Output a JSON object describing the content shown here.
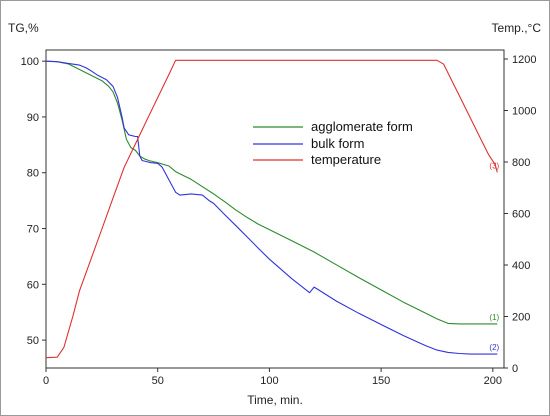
{
  "chart_data": {
    "type": "line",
    "y_left_label": "TG,%",
    "y_right_label": "Temp.,°C",
    "xlabel": "Time, min.",
    "xlim": [
      0,
      205
    ],
    "ylim_left": [
      45,
      102
    ],
    "ylim_right": [
      0,
      1235
    ],
    "x_ticks": [
      0,
      50,
      100,
      150,
      200
    ],
    "y_left_ticks": [
      50,
      60,
      70,
      80,
      90,
      100
    ],
    "y_right_ticks": [
      0,
      200,
      400,
      600,
      800,
      1000,
      1200
    ],
    "grid": false,
    "legend_position": "center-top",
    "series": [
      {
        "name": "agglomerate form",
        "axis": "left",
        "color": "#2e8b2e",
        "end_label": "(1)",
        "points": [
          [
            0,
            100
          ],
          [
            5,
            99.9
          ],
          [
            10,
            99.5
          ],
          [
            15,
            98.5
          ],
          [
            20,
            97.5
          ],
          [
            25,
            96.5
          ],
          [
            28,
            95.5
          ],
          [
            30,
            94.5
          ],
          [
            32,
            92.5
          ],
          [
            34,
            89.5
          ],
          [
            36,
            86
          ],
          [
            38,
            84.5
          ],
          [
            40,
            84
          ],
          [
            42,
            83
          ],
          [
            44,
            82.5
          ],
          [
            46,
            82.2
          ],
          [
            48,
            82
          ],
          [
            50,
            81.8
          ],
          [
            55,
            81.2
          ],
          [
            58,
            80.2
          ],
          [
            60,
            79.8
          ],
          [
            65,
            78.8
          ],
          [
            70,
            77.5
          ],
          [
            75,
            76.2
          ],
          [
            80,
            74.8
          ],
          [
            85,
            73.3
          ],
          [
            90,
            72
          ],
          [
            95,
            70.8
          ],
          [
            100,
            69.8
          ],
          [
            110,
            67.8
          ],
          [
            120,
            65.8
          ],
          [
            130,
            63.5
          ],
          [
            140,
            61.2
          ],
          [
            150,
            59
          ],
          [
            160,
            56.8
          ],
          [
            170,
            54.8
          ],
          [
            175,
            53.8
          ],
          [
            180,
            53
          ],
          [
            185,
            52.9
          ],
          [
            190,
            52.9
          ],
          [
            195,
            52.9
          ],
          [
            200,
            52.9
          ],
          [
            202,
            52.9
          ]
        ]
      },
      {
        "name": "bulk form",
        "axis": "left",
        "color": "#3333dd",
        "end_label": "(2)",
        "points": [
          [
            0,
            100
          ],
          [
            5,
            99.9
          ],
          [
            10,
            99.6
          ],
          [
            15,
            99.3
          ],
          [
            18,
            98.8
          ],
          [
            20,
            98.3
          ],
          [
            23,
            97.5
          ],
          [
            27,
            96.7
          ],
          [
            30,
            95.5
          ],
          [
            32,
            93.5
          ],
          [
            34,
            90
          ],
          [
            35,
            88
          ],
          [
            37,
            86.8
          ],
          [
            40,
            86.5
          ],
          [
            41,
            86.5
          ],
          [
            42,
            83
          ],
          [
            43,
            82.2
          ],
          [
            45,
            82
          ],
          [
            47,
            81.8
          ],
          [
            50,
            81.7
          ],
          [
            52,
            81
          ],
          [
            54,
            79.5
          ],
          [
            56,
            78
          ],
          [
            58,
            76.5
          ],
          [
            60,
            76
          ],
          [
            65,
            76.2
          ],
          [
            70,
            76
          ],
          [
            73,
            75
          ],
          [
            75,
            74.5
          ],
          [
            80,
            72.5
          ],
          [
            85,
            70.5
          ],
          [
            90,
            68.5
          ],
          [
            95,
            66.5
          ],
          [
            100,
            64.5
          ],
          [
            110,
            61
          ],
          [
            118,
            58.5
          ],
          [
            120,
            59.5
          ],
          [
            122,
            59
          ],
          [
            130,
            57
          ],
          [
            140,
            54.8
          ],
          [
            150,
            52.8
          ],
          [
            160,
            50.8
          ],
          [
            170,
            49
          ],
          [
            175,
            48.2
          ],
          [
            180,
            47.8
          ],
          [
            185,
            47.6
          ],
          [
            190,
            47.5
          ],
          [
            195,
            47.5
          ],
          [
            200,
            47.5
          ],
          [
            202,
            47.5
          ]
        ]
      },
      {
        "name": "temperature",
        "axis": "right",
        "color": "#e03030",
        "end_label": "(3)",
        "points": [
          [
            0,
            40
          ],
          [
            5,
            42
          ],
          [
            8,
            80
          ],
          [
            12,
            200
          ],
          [
            15,
            300
          ],
          [
            20,
            420
          ],
          [
            25,
            540
          ],
          [
            30,
            660
          ],
          [
            35,
            780
          ],
          [
            40,
            870
          ],
          [
            45,
            960
          ],
          [
            50,
            1050
          ],
          [
            55,
            1140
          ],
          [
            58,
            1195
          ],
          [
            60,
            1195
          ],
          [
            80,
            1195
          ],
          [
            100,
            1195
          ],
          [
            120,
            1195
          ],
          [
            140,
            1195
          ],
          [
            160,
            1195
          ],
          [
            170,
            1195
          ],
          [
            175,
            1195
          ],
          [
            178,
            1180
          ],
          [
            182,
            1110
          ],
          [
            186,
            1040
          ],
          [
            190,
            970
          ],
          [
            194,
            900
          ],
          [
            198,
            830
          ],
          [
            201,
            790
          ],
          [
            202,
            760
          ]
        ]
      }
    ]
  }
}
